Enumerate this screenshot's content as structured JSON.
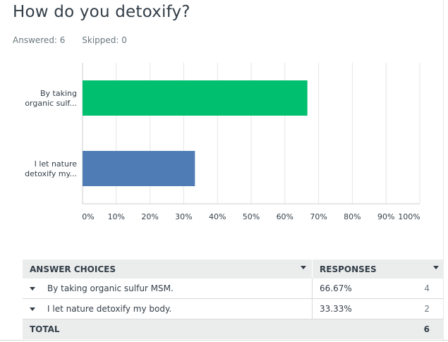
{
  "question": {
    "title": "How do you detoxify?",
    "answered_label": "Answered: 6",
    "skipped_label": "Skipped: 0"
  },
  "chart_data": {
    "type": "bar",
    "orientation": "horizontal",
    "categories": [
      "By taking organic sulf...",
      "I let nature detoxify my..."
    ],
    "category_lines": [
      [
        "By taking",
        "organic sulf..."
      ],
      [
        "I let nature",
        "detoxify my..."
      ]
    ],
    "values": [
      66.67,
      33.33
    ],
    "colors": [
      "#00bf6f",
      "#507cb6"
    ],
    "x_ticks": [
      "0%",
      "10%",
      "20%",
      "30%",
      "40%",
      "50%",
      "60%",
      "70%",
      "80%",
      "90%",
      "100%"
    ],
    "xlim": [
      0,
      100
    ],
    "grid": true,
    "title": "",
    "xlabel": "",
    "ylabel": ""
  },
  "table": {
    "headers": {
      "choices": "ANSWER CHOICES",
      "responses": "RESPONSES"
    },
    "rows": [
      {
        "choice": "By taking organic sulfur MSM.",
        "percent": "66.67%",
        "count": "4"
      },
      {
        "choice": "I let nature detoxify my body.",
        "percent": "33.33%",
        "count": "2"
      }
    ],
    "total": {
      "label": "TOTAL",
      "count": "6"
    }
  }
}
